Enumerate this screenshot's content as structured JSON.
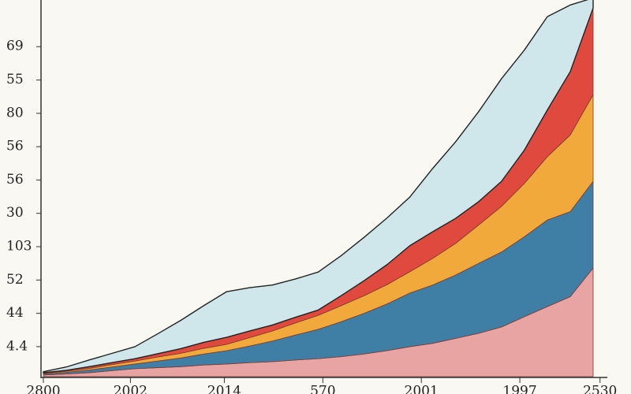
{
  "chart_data": {
    "type": "stacked-area",
    "x": [
      0,
      1,
      2,
      3,
      4,
      5,
      6,
      7,
      8,
      9,
      10,
      11,
      12,
      13,
      14,
      15,
      16,
      17,
      18,
      19,
      20,
      21,
      22,
      23,
      24
    ],
    "series": [
      {
        "color": "#e8a3a3",
        "values": [
          0.05,
          0.08,
          0.12,
          0.18,
          0.24,
          0.27,
          0.3,
          0.35,
          0.38,
          0.42,
          0.45,
          0.5,
          0.54,
          0.6,
          0.68,
          0.78,
          0.9,
          1.0,
          1.15,
          1.3,
          1.49,
          1.8,
          2.1,
          2.4,
          3.26
        ]
      },
      {
        "color": "#3f7fa6",
        "values": [
          0.03,
          0.05,
          0.08,
          0.11,
          0.14,
          0.2,
          0.26,
          0.33,
          0.4,
          0.5,
          0.62,
          0.75,
          0.88,
          1.05,
          1.22,
          1.4,
          1.61,
          1.75,
          1.9,
          2.1,
          2.25,
          2.4,
          2.6,
          2.55,
          2.6
        ]
      },
      {
        "color": "#f2a93b",
        "values": [
          0.02,
          0.03,
          0.05,
          0.07,
          0.09,
          0.12,
          0.14,
          0.17,
          0.19,
          0.25,
          0.3,
          0.36,
          0.42,
          0.48,
          0.53,
          0.58,
          0.64,
          0.8,
          0.95,
          1.15,
          1.37,
          1.6,
          1.9,
          2.3,
          2.6
        ]
      },
      {
        "color": "#e0493d",
        "values": [
          0.02,
          0.03,
          0.05,
          0.06,
          0.07,
          0.1,
          0.14,
          0.18,
          0.21,
          0.2,
          0.18,
          0.17,
          0.16,
          0.3,
          0.45,
          0.6,
          0.78,
          0.8,
          0.75,
          0.7,
          0.75,
          1.0,
          1.4,
          1.9,
          2.6
        ]
      },
      {
        "color": "#cfe6ea",
        "values": [
          0.03,
          0.1,
          0.2,
          0.28,
          0.36,
          0.6,
          0.85,
          1.1,
          1.37,
          1.3,
          1.2,
          1.15,
          1.14,
          1.2,
          1.3,
          1.4,
          1.46,
          1.9,
          2.3,
          2.7,
          3.08,
          3.0,
          2.8,
          2.0,
          0.3
        ]
      }
    ],
    "xlim": [
      0,
      24
    ],
    "xticks": [
      {
        "value": 0,
        "label": "2800"
      },
      {
        "value": 3.8,
        "label": "2002"
      },
      {
        "value": 7.9,
        "label": "2014"
      },
      {
        "value": 12.2,
        "label": "570"
      },
      {
        "value": 16.5,
        "label": "2001"
      },
      {
        "value": 20.8,
        "label": "1997"
      },
      {
        "value": 24.3,
        "label": "2530"
      }
    ],
    "ylim": [
      0,
      11.3
    ],
    "yticks": [
      {
        "value": 0.9,
        "label": "4.4"
      },
      {
        "value": 1.9,
        "label": "44"
      },
      {
        "value": 2.9,
        "label": "52"
      },
      {
        "value": 3.9,
        "label": "103"
      },
      {
        "value": 4.9,
        "label": "30"
      },
      {
        "value": 5.9,
        "label": "56"
      },
      {
        "value": 6.9,
        "label": "56"
      },
      {
        "value": 7.9,
        "label": "80"
      },
      {
        "value": 8.9,
        "label": "55"
      },
      {
        "value": 9.9,
        "label": "69"
      }
    ]
  }
}
